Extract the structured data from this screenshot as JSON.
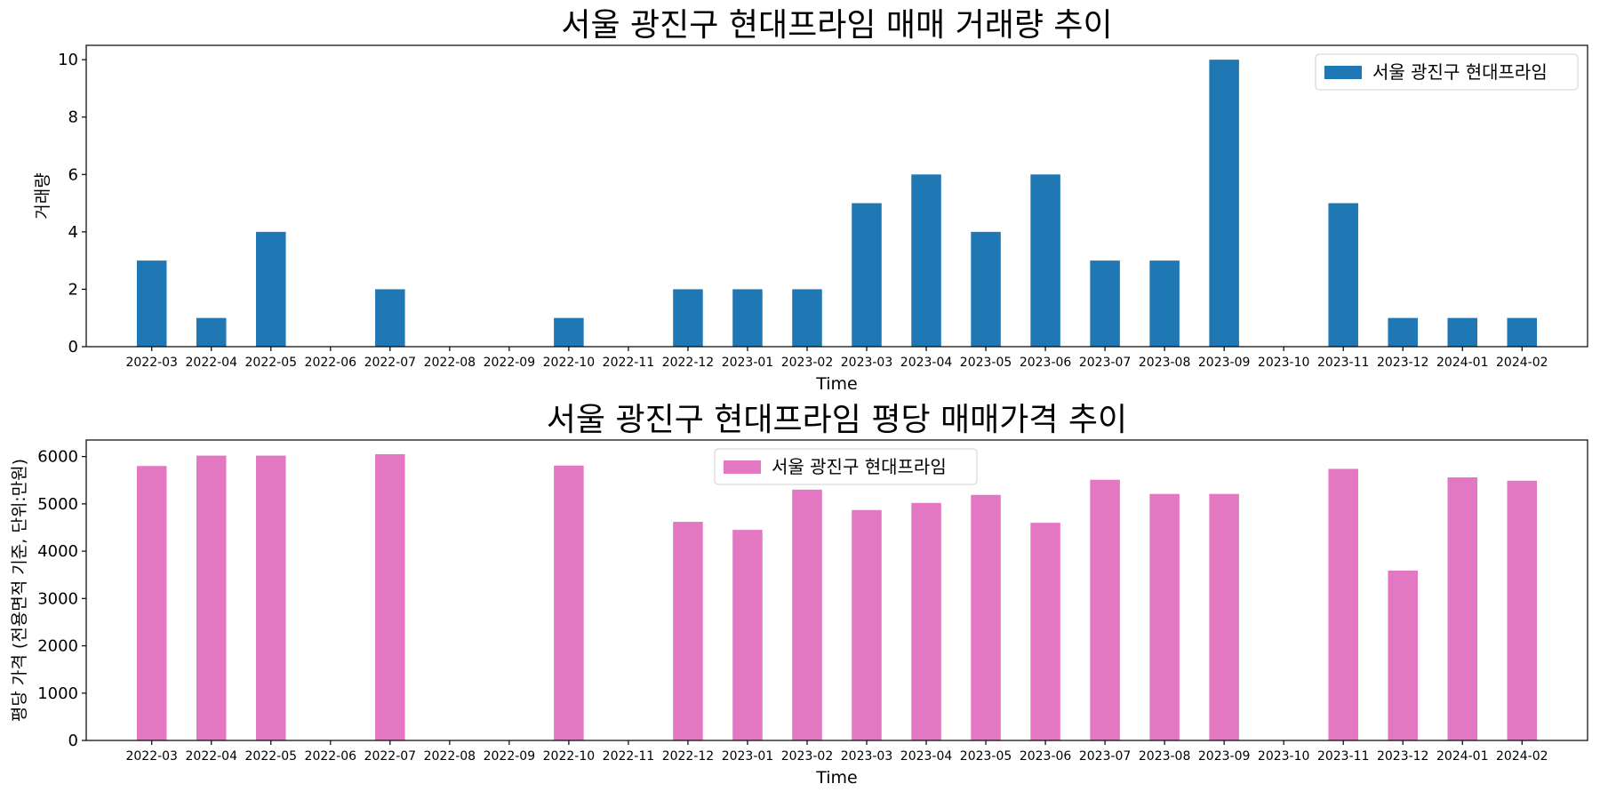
{
  "chart_data": [
    {
      "type": "bar",
      "title": "서울 광진구 현대프라임 매매 거래량 추이",
      "xlabel": "Time",
      "ylabel": "거래량",
      "ylim": [
        0,
        10.5
      ],
      "yticks": [
        0,
        2,
        4,
        6,
        8,
        10
      ],
      "legend": "top-right",
      "categories": [
        "2022-03",
        "2022-04",
        "2022-05",
        "2022-06",
        "2022-07",
        "2022-08",
        "2022-09",
        "2022-10",
        "2022-11",
        "2022-12",
        "2023-01",
        "2023-02",
        "2023-03",
        "2023-04",
        "2023-05",
        "2023-06",
        "2023-07",
        "2023-08",
        "2023-09",
        "2023-10",
        "2023-11",
        "2023-12",
        "2024-01",
        "2024-02"
      ],
      "series": [
        {
          "name": "서울 광진구 현대프라임",
          "color": "#1f77b4",
          "values": [
            3,
            1,
            4,
            0,
            2,
            0,
            0,
            1,
            0,
            2,
            2,
            2,
            5,
            6,
            4,
            6,
            3,
            3,
            10,
            0,
            5,
            1,
            1,
            1
          ]
        }
      ]
    },
    {
      "type": "bar",
      "title": "서울 광진구 현대프라임 평당 매매가격 추이",
      "xlabel": "Time",
      "ylabel": "평당 가격 (전용면적 기준, 단위:만원)",
      "ylim": [
        0,
        6350
      ],
      "yticks": [
        0,
        1000,
        2000,
        3000,
        4000,
        5000,
        6000
      ],
      "legend": "top-center",
      "categories": [
        "2022-03",
        "2022-04",
        "2022-05",
        "2022-06",
        "2022-07",
        "2022-08",
        "2022-09",
        "2022-10",
        "2022-11",
        "2022-12",
        "2023-01",
        "2023-02",
        "2023-03",
        "2023-04",
        "2023-05",
        "2023-06",
        "2023-07",
        "2023-08",
        "2023-09",
        "2023-10",
        "2023-11",
        "2023-12",
        "2024-01",
        "2024-02"
      ],
      "series": [
        {
          "name": "서울 광진구 현대프라임",
          "color": "#e377c2",
          "values": [
            5800,
            6020,
            6020,
            0,
            6050,
            0,
            0,
            5810,
            0,
            4620,
            4450,
            5300,
            4870,
            5020,
            5190,
            4600,
            5510,
            5210,
            5210,
            0,
            5740,
            3590,
            5560,
            5490
          ]
        }
      ]
    }
  ]
}
